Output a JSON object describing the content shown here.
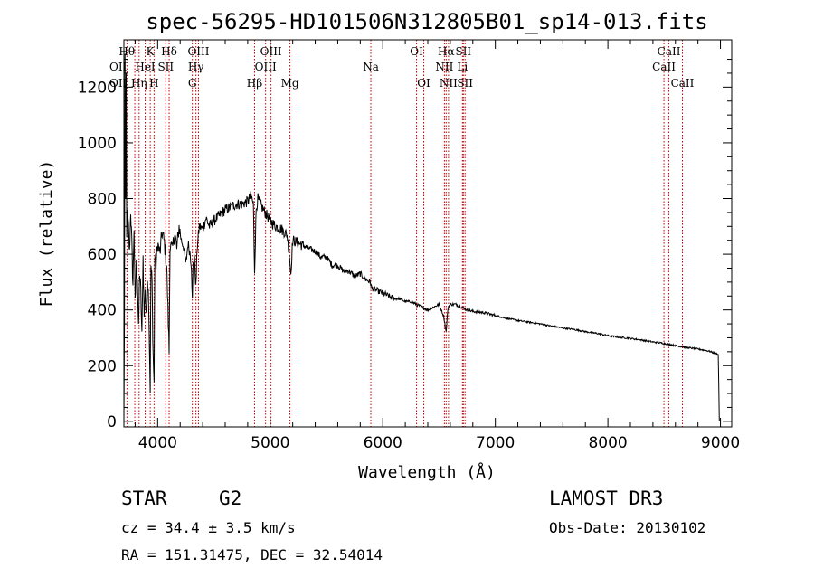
{
  "chart_data": {
    "type": "line",
    "title": "spec-56295-HD101506N312805B01_sp14-013.fits",
    "xlabel": "Wavelength (Å)",
    "ylabel": "Flux (relative)",
    "xlim": [
      3700,
      9100
    ],
    "ylim": [
      -20,
      1370
    ],
    "x_ticks": [
      4000,
      5000,
      6000,
      7000,
      8000,
      9000
    ],
    "y_ticks": [
      0,
      200,
      400,
      600,
      800,
      1000,
      1200
    ],
    "series": [
      {
        "name": "spectrum",
        "x": [
          3700,
          3705,
          3710,
          3715,
          3720,
          3725,
          3730,
          3740,
          3750,
          3760,
          3770,
          3780,
          3790,
          3800,
          3810,
          3820,
          3830,
          3840,
          3850,
          3860,
          3870,
          3880,
          3890,
          3900,
          3910,
          3920,
          3930,
          3934,
          3940,
          3950,
          3960,
          3968,
          3975,
          3985,
          4000,
          4020,
          4040,
          4060,
          4080,
          4102,
          4110,
          4130,
          4150,
          4170,
          4190,
          4210,
          4230,
          4250,
          4270,
          4290,
          4300,
          4308,
          4315,
          4325,
          4340,
          4350,
          4370,
          4400,
          4430,
          4460,
          4500,
          4550,
          4600,
          4650,
          4700,
          4750,
          4800,
          4830,
          4850,
          4861,
          4875,
          4890,
          4910,
          4940,
          4970,
          5000,
          5050,
          5100,
          5150,
          5170,
          5183,
          5200,
          5250,
          5300,
          5350,
          5400,
          5450,
          5500,
          5550,
          5600,
          5650,
          5700,
          5750,
          5800,
          5850,
          5890,
          5900,
          5950,
          6000,
          6050,
          6100,
          6150,
          6200,
          6250,
          6300,
          6350,
          6400,
          6450,
          6500,
          6540,
          6563,
          6580,
          6600,
          6650,
          6700,
          6750,
          6800,
          6900,
          7000,
          7100,
          7200,
          7300,
          7400,
          7500,
          7600,
          7700,
          7800,
          7900,
          8000,
          8100,
          8200,
          8300,
          8400,
          8500,
          8600,
          8700,
          8800,
          8900,
          8980,
          8985,
          8990
        ],
        "values": [
          0,
          350,
          1320,
          800,
          1240,
          650,
          760,
          690,
          600,
          760,
          640,
          490,
          700,
          420,
          560,
          520,
          320,
          540,
          460,
          300,
          590,
          380,
          480,
          360,
          520,
          440,
          200,
          120,
          560,
          500,
          230,
          140,
          600,
          560,
          640,
          600,
          680,
          640,
          560,
          250,
          640,
          610,
          680,
          620,
          700,
          650,
          630,
          560,
          640,
          600,
          560,
          430,
          560,
          600,
          480,
          620,
          700,
          690,
          730,
          700,
          720,
          740,
          760,
          770,
          780,
          780,
          790,
          810,
          780,
          540,
          760,
          800,
          780,
          760,
          740,
          720,
          700,
          690,
          670,
          600,
          530,
          650,
          640,
          630,
          620,
          610,
          590,
          590,
          560,
          560,
          540,
          540,
          520,
          530,
          510,
          500,
          480,
          470,
          460,
          450,
          440,
          440,
          430,
          430,
          420,
          410,
          400,
          410,
          420,
          380,
          320,
          410,
          420,
          420,
          410,
          400,
          395,
          390,
          380,
          370,
          362,
          356,
          350,
          342,
          335,
          330,
          322,
          316,
          308,
          302,
          298,
          292,
          285,
          280,
          272,
          265,
          260,
          252,
          240,
          130,
          0
        ]
      }
    ],
    "spectral_lines": [
      {
        "label": "Hθ",
        "wave": 3797,
        "row": 1,
        "anchor": "end"
      },
      {
        "label": "OII",
        "wave": 3727,
        "row": 2,
        "anchor": "end"
      },
      {
        "label": "OII",
        "wave": 3727,
        "row": 3,
        "anchor": "end"
      },
      {
        "label": "Hη",
        "wave": 3835,
        "row": 3,
        "anchor": "middle"
      },
      {
        "label": "K",
        "wave": 3934,
        "row": 1,
        "anchor": "middle"
      },
      {
        "label": "HeI",
        "wave": 3889,
        "row": 2,
        "anchor": "middle"
      },
      {
        "label": "H",
        "wave": 3968,
        "row": 3,
        "anchor": "middle"
      },
      {
        "label": "Hδ",
        "wave": 4102,
        "row": 1,
        "anchor": "middle"
      },
      {
        "label": "SII",
        "wave": 4072,
        "row": 2,
        "anchor": "middle"
      },
      {
        "label": "OIII",
        "wave": 4363,
        "row": 1,
        "anchor": "middle"
      },
      {
        "label": "Hγ",
        "wave": 4340,
        "row": 2,
        "anchor": "middle"
      },
      {
        "label": "G",
        "wave": 4308,
        "row": 3,
        "anchor": "middle"
      },
      {
        "label": "Hβ",
        "wave": 4861,
        "row": 3,
        "anchor": "middle"
      },
      {
        "label": "OIII",
        "wave": 5007,
        "row": 1,
        "anchor": "middle"
      },
      {
        "label": "OIII",
        "wave": 4959,
        "row": 2,
        "anchor": "middle"
      },
      {
        "label": "Mg",
        "wave": 5175,
        "row": 3,
        "anchor": "middle"
      },
      {
        "label": "Na",
        "wave": 5894,
        "row": 2,
        "anchor": "middle"
      },
      {
        "label": "OI",
        "wave": 6300,
        "row": 1,
        "anchor": "middle"
      },
      {
        "label": "OI",
        "wave": 6364,
        "row": 3,
        "anchor": "middle"
      },
      {
        "label": "Hα",
        "wave": 6563,
        "row": 1,
        "anchor": "middle"
      },
      {
        "label": "SII",
        "wave": 6716,
        "row": 1,
        "anchor": "middle"
      },
      {
        "label": "NII",
        "wave": 6548,
        "row": 2,
        "anchor": "middle"
      },
      {
        "label": "Li",
        "wave": 6708,
        "row": 2,
        "anchor": "middle"
      },
      {
        "label": "NII",
        "wave": 6584,
        "row": 3,
        "anchor": "middle"
      },
      {
        "label": "SII",
        "wave": 6731,
        "row": 3,
        "anchor": "middle"
      },
      {
        "label": "CaII",
        "wave": 8542,
        "row": 1,
        "anchor": "middle"
      },
      {
        "label": "CaII",
        "wave": 8498,
        "row": 2,
        "anchor": "middle"
      },
      {
        "label": "CaII",
        "wave": 8662,
        "row": 3,
        "anchor": "middle"
      }
    ],
    "line_color": "#000000",
    "marker_color": "#cc0000"
  },
  "info": {
    "object_class": "STAR",
    "subclass": "G2",
    "survey": "LAMOST DR3",
    "cz": "cz = 34.4 ± 3.5 km/s",
    "obs_date": "Obs-Date: 20130102",
    "coords": "RA = 151.31475, DEC =  32.54014"
  }
}
